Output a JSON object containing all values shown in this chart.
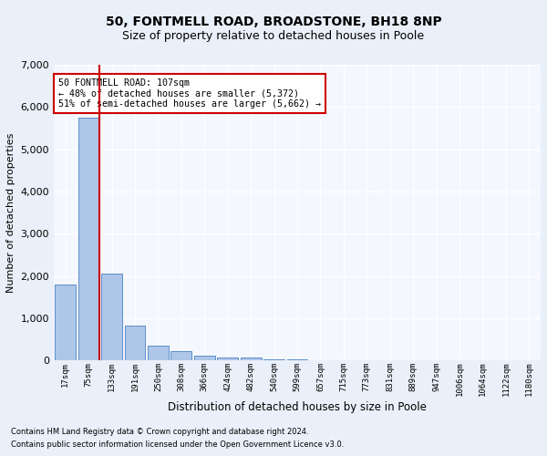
{
  "title_line1": "50, FONTMELL ROAD, BROADSTONE, BH18 8NP",
  "title_line2": "Size of property relative to detached houses in Poole",
  "xlabel": "Distribution of detached houses by size in Poole",
  "ylabel": "Number of detached properties",
  "bar_labels": [
    "17sqm",
    "75sqm",
    "133sqm",
    "191sqm",
    "250sqm",
    "308sqm",
    "366sqm",
    "424sqm",
    "482sqm",
    "540sqm",
    "599sqm",
    "657sqm",
    "715sqm",
    "773sqm",
    "831sqm",
    "889sqm",
    "947sqm",
    "1006sqm",
    "1064sqm",
    "1122sqm",
    "1180sqm"
  ],
  "bar_values": [
    1800,
    5750,
    2050,
    820,
    360,
    220,
    120,
    75,
    75,
    30,
    25,
    0,
    0,
    0,
    0,
    0,
    0,
    0,
    0,
    0,
    0
  ],
  "bar_color": "#aec6e8",
  "bar_edge_color": "#5b8fc9",
  "vline_color": "#cc0000",
  "ylim": [
    0,
    7000
  ],
  "yticks": [
    0,
    1000,
    2000,
    3000,
    4000,
    5000,
    6000,
    7000
  ],
  "annotation_text": "50 FONTMELL ROAD: 107sqm\n← 48% of detached houses are smaller (5,372)\n51% of semi-detached houses are larger (5,662) →",
  "annotation_box_color": "#ffffff",
  "annotation_box_edge": "#cc0000",
  "footer_line1": "Contains HM Land Registry data © Crown copyright and database right 2024.",
  "footer_line2": "Contains public sector information licensed under the Open Government Licence v3.0.",
  "bg_color": "#eaf0f9",
  "plot_bg_color": "#f4f7fd",
  "grid_color": "#ffffff"
}
